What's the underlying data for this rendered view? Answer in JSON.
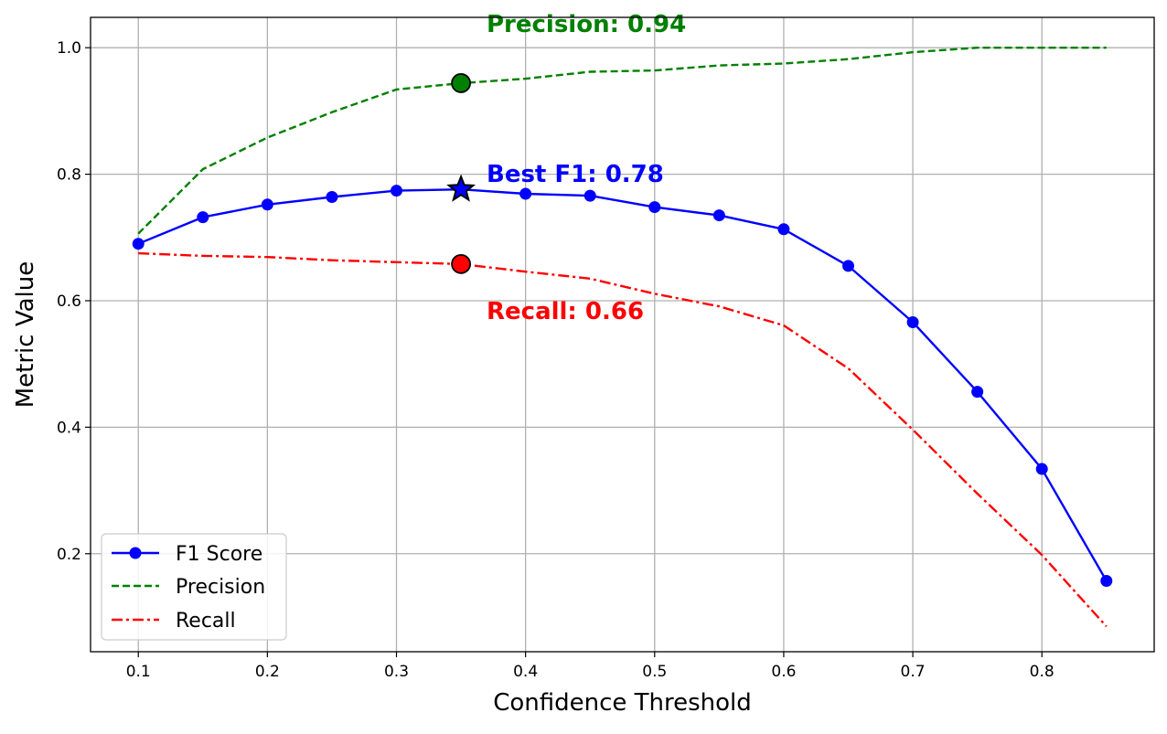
{
  "chart_data": {
    "type": "line",
    "xlabel": "Confidence Threshold",
    "ylabel": "Metric Value",
    "xlim": [
      0.063,
      0.887
    ],
    "ylim": [
      0.045,
      1.048
    ],
    "x_ticks": [
      0.1,
      0.2,
      0.3,
      0.4,
      0.5,
      0.6,
      0.7,
      0.8
    ],
    "x_tick_labels": [
      "0.1",
      "0.2",
      "0.3",
      "0.4",
      "0.5",
      "0.6",
      "0.7",
      "0.8"
    ],
    "y_ticks": [
      0.2,
      0.4,
      0.6,
      0.8,
      1.0
    ],
    "y_tick_labels": [
      "0.2",
      "0.4",
      "0.6",
      "0.8",
      "1.0"
    ],
    "grid": true,
    "legend_position": "lower-left",
    "x": [
      0.1,
      0.15,
      0.2,
      0.25,
      0.3,
      0.35,
      0.4,
      0.45,
      0.5,
      0.55,
      0.6,
      0.65,
      0.7,
      0.75,
      0.8,
      0.85
    ],
    "series": [
      {
        "name": "F1 Score",
        "color": "#0000ff",
        "style": "solid-marker",
        "values": [
          0.69,
          0.732,
          0.752,
          0.764,
          0.774,
          0.776,
          0.769,
          0.766,
          0.748,
          0.735,
          0.713,
          0.655,
          0.566,
          0.456,
          0.334,
          0.157
        ]
      },
      {
        "name": "Precision",
        "color": "#008000",
        "style": "dashed",
        "values": [
          0.706,
          0.808,
          0.858,
          0.898,
          0.934,
          0.944,
          0.951,
          0.962,
          0.964,
          0.972,
          0.975,
          0.982,
          0.993,
          1.0,
          1.0,
          1.0
        ]
      },
      {
        "name": "Recall",
        "color": "#ff0000",
        "style": "dashdot",
        "values": [
          0.675,
          0.671,
          0.669,
          0.664,
          0.661,
          0.658,
          0.646,
          0.635,
          0.611,
          0.591,
          0.561,
          0.493,
          0.396,
          0.295,
          0.198,
          0.085
        ]
      }
    ],
    "highlights": [
      {
        "series": "F1 Score",
        "x": 0.35,
        "y": 0.776,
        "marker": "star",
        "color": "#0000ff",
        "label": "Best F1: 0.78"
      },
      {
        "series": "Precision",
        "x": 0.35,
        "y": 0.944,
        "marker": "circle",
        "color": "#008000",
        "label": "Precision: 0.94"
      },
      {
        "series": "Recall",
        "x": 0.35,
        "y": 0.658,
        "marker": "circle",
        "color": "#ff0000",
        "label": "Recall: 0.66"
      }
    ]
  }
}
